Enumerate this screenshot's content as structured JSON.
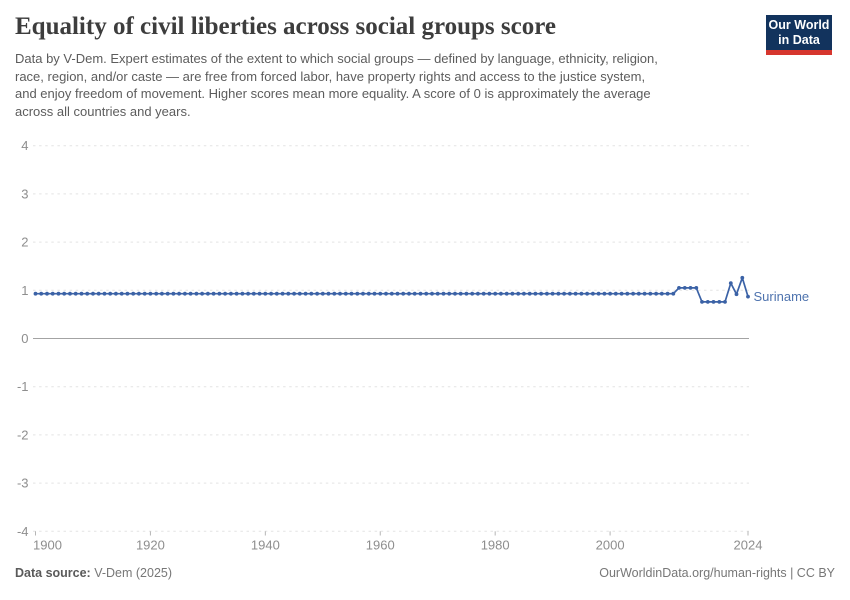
{
  "header": {
    "title": "Equality of civil liberties across social groups score",
    "subtitle_lines": [
      "Data by V-Dem. Expert estimates of the extent to which social groups — defined by language, ethnicity, religion,",
      "race, region, and/or caste — are free from forced labor, have property rights and access to the justice system,",
      "and enjoy freedom of movement. Higher scores mean more equality. A score of 0 is approximately the average",
      "across all countries and years."
    ],
    "logo": {
      "line1": "Our World",
      "line2": "in Data",
      "bg_color": "#12335d",
      "accent_color": "#d6362e"
    }
  },
  "chart_data": {
    "type": "line",
    "title": "Equality of civil liberties across social groups score",
    "entity": "Suriname",
    "xlim": [
      1900,
      2024
    ],
    "ylim": [
      -4,
      4
    ],
    "x_ticks": [
      1900,
      1920,
      1940,
      1960,
      1980,
      2000,
      2024
    ],
    "y_ticks": [
      4,
      3,
      2,
      1,
      0,
      -1,
      -2,
      -3,
      -4
    ],
    "grid": "horizontal dashed gridlines, solid zero line, markers on every yearly point",
    "legend_position": "label at end of line",
    "series": [
      {
        "name": "Suriname",
        "color": "#3b62a6",
        "label_color": "#4e73ae",
        "encoding": "runs = [start_year, end_year, value]; one data point per year",
        "runs": [
          [
            1900,
            2011,
            0.93
          ],
          [
            2012,
            2015,
            1.05
          ],
          [
            2016,
            2020,
            0.76
          ],
          [
            2021,
            2021,
            1.15
          ],
          [
            2022,
            2022,
            0.92
          ],
          [
            2023,
            2023,
            1.26
          ],
          [
            2024,
            2024,
            0.87
          ]
        ]
      }
    ],
    "colors": {
      "gridline": "#e4e4e4",
      "zero_line": "#a3a3a3",
      "tick_mark": "#b5b5b5",
      "axis_label": "#8e8e8e"
    }
  },
  "footer": {
    "source_label": "Data source:",
    "source_value": "V-Dem (2025)",
    "credit": "OurWorldinData.org/human-rights | CC BY"
  }
}
